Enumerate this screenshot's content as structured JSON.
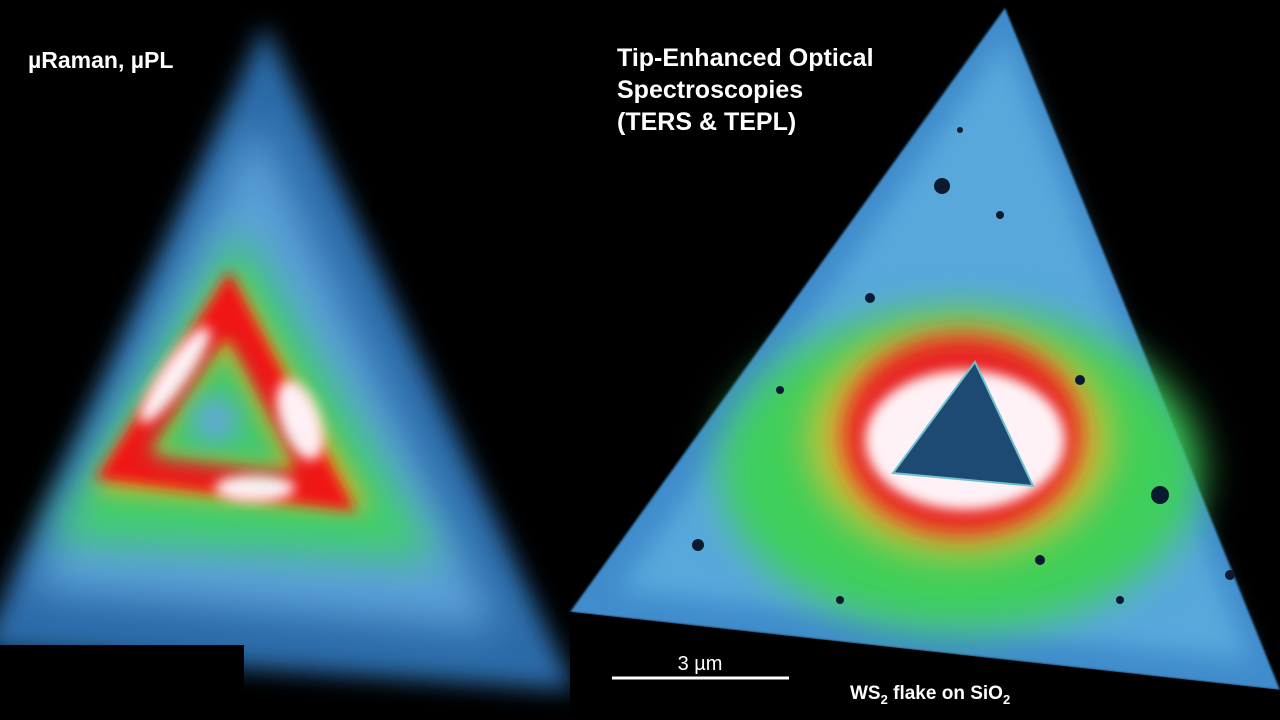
{
  "left_panel": {
    "label": "µRaman, µPL"
  },
  "right_panel": {
    "label_lines": [
      "Tip-Enhanced Optical",
      "Spectroscopies",
      "(TERS & TEPL)"
    ],
    "scale_bar": "3 µm",
    "caption": [
      "WS",
      "2",
      " flake on SiO",
      "2"
    ]
  }
}
